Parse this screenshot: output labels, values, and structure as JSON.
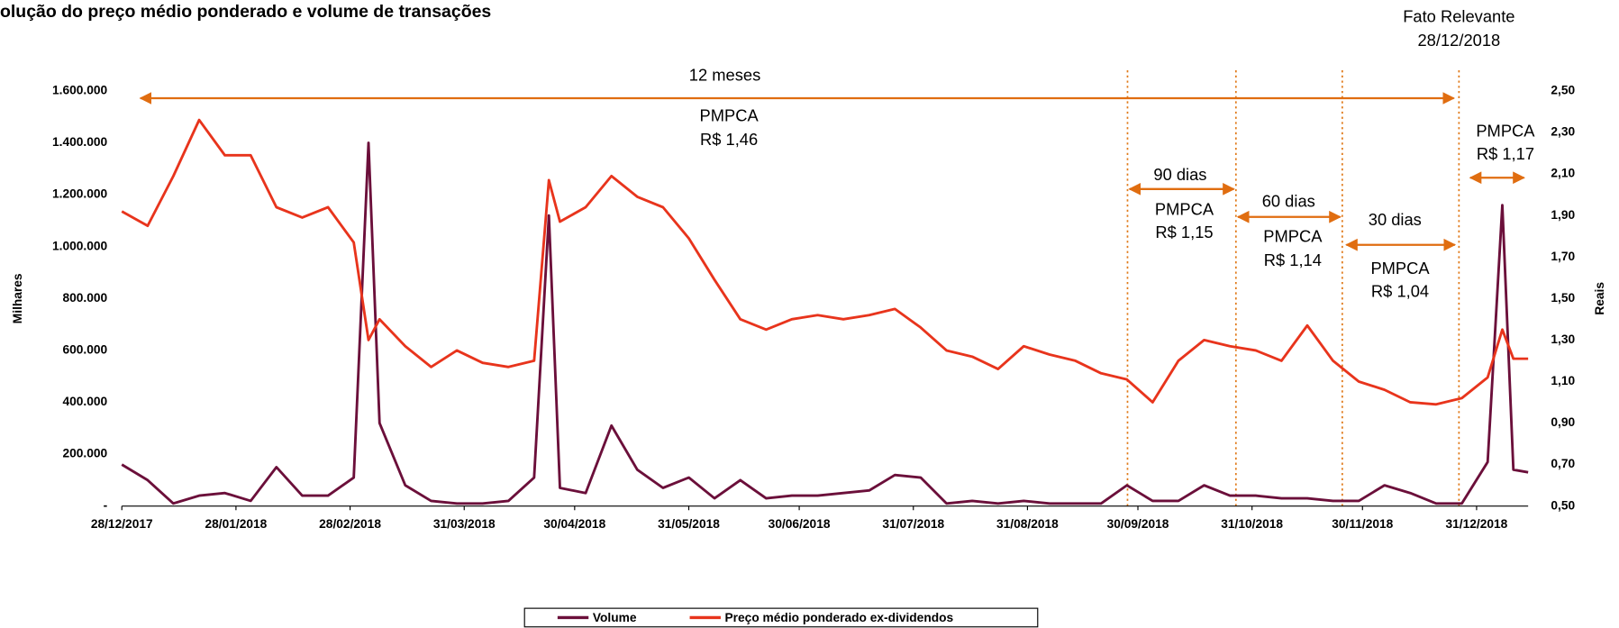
{
  "chart_data": {
    "type": "line",
    "title": "olução do preço médio ponderado e volume de transações",
    "ylabel": "Milhares",
    "y2label": "Reais",
    "annotations": [
      "Fato Relevante",
      "28/12/2018",
      "12 meses",
      "PMPCA",
      "R$ 1,46",
      "PMPCA",
      "R$ 1,17",
      "90 dias",
      "PMPCA",
      "R$ 1,15",
      "60 dias",
      "PMPCA",
      "R$ 1,14",
      "30 dias",
      "PMPCA",
      "R$ 1,04"
    ],
    "x": [
      "28/12/2017",
      "04/01/2018",
      "11/01/2018",
      "18/01/2018",
      "25/01/2018",
      "01/02/2018",
      "08/02/2018",
      "15/02/2018",
      "22/02/2018",
      "01/03/2018",
      "05/03/2018",
      "08/03/2018",
      "15/03/2018",
      "22/03/2018",
      "29/03/2018",
      "05/04/2018",
      "12/04/2018",
      "19/04/2018",
      "23/04/2018",
      "26/04/2018",
      "03/05/2018",
      "10/05/2018",
      "17/05/2018",
      "24/05/2018",
      "31/05/2018",
      "07/06/2018",
      "14/06/2018",
      "21/06/2018",
      "28/06/2018",
      "05/07/2018",
      "12/07/2018",
      "19/07/2018",
      "26/07/2018",
      "02/08/2018",
      "09/08/2018",
      "16/08/2018",
      "23/08/2018",
      "30/08/2018",
      "06/09/2018",
      "13/09/2018",
      "20/09/2018",
      "27/09/2018",
      "04/10/2018",
      "11/10/2018",
      "18/10/2018",
      "25/10/2018",
      "01/11/2018",
      "08/11/2018",
      "15/11/2018",
      "22/11/2018",
      "29/11/2018",
      "06/12/2018",
      "13/12/2018",
      "20/12/2018",
      "27/12/2018",
      "03/01/2019",
      "07/01/2019",
      "10/01/2019",
      "14/01/2019"
    ],
    "series": [
      {
        "name": "Volume",
        "color": "#6b0f3a",
        "values": [
          160000,
          100000,
          10000,
          40000,
          50000,
          20000,
          150000,
          40000,
          40000,
          110000,
          1400000,
          320000,
          80000,
          20000,
          10000,
          10000,
          20000,
          110000,
          1120000,
          70000,
          50000,
          310000,
          140000,
          70000,
          110000,
          30000,
          100000,
          30000,
          40000,
          40000,
          50000,
          60000,
          120000,
          110000,
          10000,
          20000,
          10000,
          20000,
          10000,
          10000,
          10000,
          80000,
          20000,
          20000,
          80000,
          40000,
          40000,
          30000,
          30000,
          20000,
          20000,
          80000,
          50000,
          10000,
          10000,
          170000,
          1160000,
          140000,
          130000
        ]
      },
      {
        "name": "Preço médio ponderado ex-dividendos",
        "color": "#e8341c",
        "axis": "y2",
        "values": [
          1.92,
          1.85,
          2.09,
          2.36,
          2.19,
          2.19,
          1.94,
          1.89,
          1.94,
          1.77,
          1.3,
          1.4,
          1.27,
          1.17,
          1.25,
          1.19,
          1.17,
          1.2,
          2.07,
          1.87,
          1.94,
          2.09,
          1.99,
          1.94,
          1.79,
          1.59,
          1.4,
          1.35,
          1.4,
          1.42,
          1.4,
          1.42,
          1.45,
          1.36,
          1.25,
          1.22,
          1.16,
          1.27,
          1.23,
          1.2,
          1.14,
          1.11,
          1.0,
          1.2,
          1.3,
          1.27,
          1.25,
          1.2,
          1.37,
          1.2,
          1.1,
          1.06,
          1.0,
          0.99,
          1.02,
          1.12,
          1.35,
          1.21,
          1.21
        ]
      }
    ],
    "xlim": [
      "28/12/2017",
      "14/01/2019"
    ],
    "xticks": [
      "28/12/2017",
      "28/01/2018",
      "28/02/2018",
      "31/03/2018",
      "30/04/2018",
      "31/05/2018",
      "30/06/2018",
      "31/07/2018",
      "31/08/2018",
      "30/09/2018",
      "31/10/2018",
      "30/11/2018",
      "31/12/2018"
    ],
    "ylim": [
      0,
      1600000
    ],
    "yticks": [
      {
        "value": 0,
        "label": "-"
      },
      {
        "value": 200000,
        "label": "200.000"
      },
      {
        "value": 400000,
        "label": "400.000"
      },
      {
        "value": 600000,
        "label": "600.000"
      },
      {
        "value": 800000,
        "label": "800.000"
      },
      {
        "value": 1000000,
        "label": "1.000.000"
      },
      {
        "value": 1200000,
        "label": "1.200.000"
      },
      {
        "value": 1400000,
        "label": "1.400.000"
      },
      {
        "value": 1600000,
        "label": "1.600.000"
      }
    ],
    "y2lim": [
      0.5,
      2.5
    ],
    "y2ticks": [
      {
        "value": 0.5,
        "label": "0,50"
      },
      {
        "value": 0.7,
        "label": "0,70"
      },
      {
        "value": 0.9,
        "label": "0,90"
      },
      {
        "value": 1.1,
        "label": "1,10"
      },
      {
        "value": 1.3,
        "label": "1,30"
      },
      {
        "value": 1.5,
        "label": "1,50"
      },
      {
        "value": 1.7,
        "label": "1,70"
      },
      {
        "value": 1.9,
        "label": "1,90"
      },
      {
        "value": 2.1,
        "label": "2,10"
      },
      {
        "value": 2.3,
        "label": "2,30"
      },
      {
        "value": 2.5,
        "label": "2,50"
      }
    ],
    "grid": false,
    "legend": "lower center"
  }
}
